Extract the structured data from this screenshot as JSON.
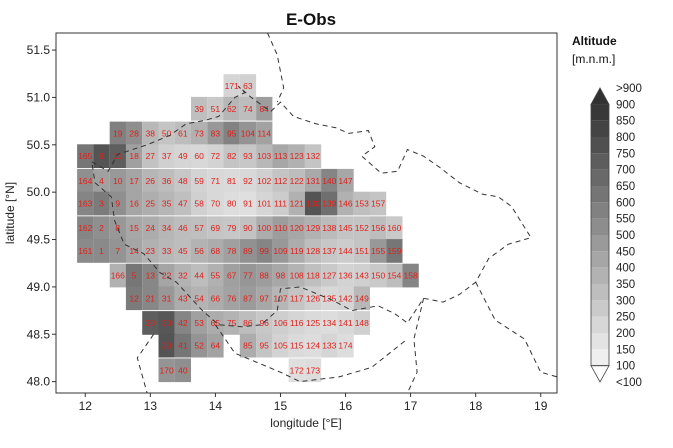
{
  "chart_data": {
    "type": "heatmap",
    "title": "E-Obs",
    "xlabel": "longitude [°E]",
    "ylabel": "latitude [°N]",
    "xlim": [
      11.55,
      19.25
    ],
    "ylim": [
      47.88,
      51.68
    ],
    "x_ticks": [
      12,
      13,
      14,
      15,
      16,
      17,
      18,
      19
    ],
    "y_ticks": [
      48.0,
      48.5,
      49.0,
      49.5,
      50.0,
      50.5,
      51.0,
      51.5
    ],
    "y_tick_labels": [
      "48.0",
      "48.5",
      "49.0",
      "49.5",
      "50.0",
      "50.5",
      "51.0",
      "51.5"
    ],
    "grid": false,
    "legend": {
      "position": "right",
      "title": "Altitude",
      "unit": "[m.n.m.]",
      "labels": [
        ">900",
        "900",
        "850",
        "800",
        "750",
        "700",
        "650",
        "600",
        "550",
        "500",
        "450",
        "400",
        "350",
        "300",
        "250",
        "200",
        "150",
        "100",
        "<100"
      ]
    },
    "cells": [
      {
        "id": "171",
        "lon": 14.25,
        "lat": 51.12,
        "alt": 230
      },
      {
        "id": "63",
        "lon": 14.5,
        "lat": 51.12,
        "alt": 250
      },
      {
        "id": "39",
        "lon": 13.75,
        "lat": 50.88,
        "alt": 320
      },
      {
        "id": "51",
        "lon": 14.0,
        "lat": 50.88,
        "alt": 280
      },
      {
        "id": "62",
        "lon": 14.25,
        "lat": 50.88,
        "alt": 360
      },
      {
        "id": "74",
        "lon": 14.5,
        "lat": 50.88,
        "alt": 330
      },
      {
        "id": "84",
        "lon": 14.75,
        "lat": 50.88,
        "alt": 460
      },
      {
        "id": "19",
        "lon": 12.5,
        "lat": 50.62,
        "alt": 580
      },
      {
        "id": "28",
        "lon": 12.75,
        "lat": 50.62,
        "alt": 520
      },
      {
        "id": "38",
        "lon": 13.0,
        "lat": 50.62,
        "alt": 350
      },
      {
        "id": "50",
        "lon": 13.25,
        "lat": 50.62,
        "alt": 300
      },
      {
        "id": "61",
        "lon": 13.5,
        "lat": 50.62,
        "alt": 330
      },
      {
        "id": "73",
        "lon": 13.75,
        "lat": 50.62,
        "alt": 380
      },
      {
        "id": "83",
        "lon": 14.0,
        "lat": 50.62,
        "alt": 480
      },
      {
        "id": "95",
        "lon": 14.25,
        "lat": 50.62,
        "alt": 570
      },
      {
        "id": "104",
        "lon": 14.5,
        "lat": 50.62,
        "alt": 500
      },
      {
        "id": "114",
        "lon": 14.75,
        "lat": 50.62,
        "alt": 440
      },
      {
        "id": "165",
        "lon": 12.0,
        "lat": 50.38,
        "alt": 620
      },
      {
        "id": "6",
        "lon": 12.25,
        "lat": 50.38,
        "alt": 760
      },
      {
        "id": "11",
        "lon": 12.5,
        "lat": 50.38,
        "alt": 720
      },
      {
        "id": "18",
        "lon": 12.75,
        "lat": 50.38,
        "alt": 450
      },
      {
        "id": "27",
        "lon": 13.0,
        "lat": 50.38,
        "alt": 310
      },
      {
        "id": "37",
        "lon": 13.25,
        "lat": 50.38,
        "alt": 250
      },
      {
        "id": "49",
        "lon": 13.5,
        "lat": 50.38,
        "alt": 230
      },
      {
        "id": "60",
        "lon": 13.75,
        "lat": 50.38,
        "alt": 220
      },
      {
        "id": "72",
        "lon": 14.0,
        "lat": 50.38,
        "alt": 240
      },
      {
        "id": "82",
        "lon": 14.25,
        "lat": 50.38,
        "alt": 300
      },
      {
        "id": "93",
        "lon": 14.5,
        "lat": 50.38,
        "alt": 290
      },
      {
        "id": "103",
        "lon": 14.75,
        "lat": 50.38,
        "alt": 350
      },
      {
        "id": "113",
        "lon": 15.0,
        "lat": 50.38,
        "alt": 420
      },
      {
        "id": "123",
        "lon": 15.25,
        "lat": 50.38,
        "alt": 380
      },
      {
        "id": "132",
        "lon": 15.5,
        "lat": 50.38,
        "alt": 300
      },
      {
        "id": "164",
        "lon": 12.0,
        "lat": 50.12,
        "alt": 520
      },
      {
        "id": "4",
        "lon": 12.25,
        "lat": 50.12,
        "alt": 450
      },
      {
        "id": "10",
        "lon": 12.5,
        "lat": 50.12,
        "alt": 480
      },
      {
        "id": "17",
        "lon": 12.75,
        "lat": 50.12,
        "alt": 430
      },
      {
        "id": "26",
        "lon": 13.0,
        "lat": 50.12,
        "alt": 360
      },
      {
        "id": "36",
        "lon": 13.25,
        "lat": 50.12,
        "alt": 330
      },
      {
        "id": "48",
        "lon": 13.5,
        "lat": 50.12,
        "alt": 290
      },
      {
        "id": "59",
        "lon": 13.75,
        "lat": 50.12,
        "alt": 240
      },
      {
        "id": "71",
        "lon": 14.0,
        "lat": 50.12,
        "alt": 220
      },
      {
        "id": "81",
        "lon": 14.25,
        "lat": 50.12,
        "alt": 210
      },
      {
        "id": "92",
        "lon": 14.5,
        "lat": 50.12,
        "alt": 220
      },
      {
        "id": "102",
        "lon": 14.75,
        "lat": 50.12,
        "alt": 250
      },
      {
        "id": "112",
        "lon": 15.0,
        "lat": 50.12,
        "alt": 300
      },
      {
        "id": "122",
        "lon": 15.25,
        "lat": 50.12,
        "alt": 330
      },
      {
        "id": "131",
        "lon": 15.5,
        "lat": 50.12,
        "alt": 410
      },
      {
        "id": "140",
        "lon": 15.75,
        "lat": 50.12,
        "alt": 560
      },
      {
        "id": "147",
        "lon": 16.0,
        "lat": 50.12,
        "alt": 420
      },
      {
        "id": "163",
        "lon": 12.0,
        "lat": 49.88,
        "alt": 560
      },
      {
        "id": "3",
        "lon": 12.25,
        "lat": 49.88,
        "alt": 600
      },
      {
        "id": "9",
        "lon": 12.5,
        "lat": 49.88,
        "alt": 520
      },
      {
        "id": "16",
        "lon": 12.75,
        "lat": 49.88,
        "alt": 430
      },
      {
        "id": "25",
        "lon": 13.0,
        "lat": 49.88,
        "alt": 390
      },
      {
        "id": "35",
        "lon": 13.25,
        "lat": 49.88,
        "alt": 360
      },
      {
        "id": "47",
        "lon": 13.5,
        "lat": 49.88,
        "alt": 320
      },
      {
        "id": "58",
        "lon": 13.75,
        "lat": 49.88,
        "alt": 250
      },
      {
        "id": "70",
        "lon": 14.0,
        "lat": 49.88,
        "alt": 220
      },
      {
        "id": "80",
        "lon": 14.25,
        "lat": 49.88,
        "alt": 200
      },
      {
        "id": "91",
        "lon": 14.5,
        "lat": 49.88,
        "alt": 190
      },
      {
        "id": "101",
        "lon": 14.75,
        "lat": 49.88,
        "alt": 230
      },
      {
        "id": "111",
        "lon": 15.0,
        "lat": 49.88,
        "alt": 270
      },
      {
        "id": "121",
        "lon": 15.25,
        "lat": 49.88,
        "alt": 380
      },
      {
        "id": "130",
        "lon": 15.5,
        "lat": 49.88,
        "alt": 760
      },
      {
        "id": "139",
        "lon": 15.75,
        "lat": 49.88,
        "alt": 650
      },
      {
        "id": "146",
        "lon": 16.0,
        "lat": 49.88,
        "alt": 380
      },
      {
        "id": "153",
        "lon": 16.25,
        "lat": 49.88,
        "alt": 320
      },
      {
        "id": "157",
        "lon": 16.5,
        "lat": 49.88,
        "alt": 300
      },
      {
        "id": "162",
        "lon": 12.0,
        "lat": 49.62,
        "alt": 560
      },
      {
        "id": "2",
        "lon": 12.25,
        "lat": 49.62,
        "alt": 520
      },
      {
        "id": "8",
        "lon": 12.5,
        "lat": 49.62,
        "alt": 480
      },
      {
        "id": "15",
        "lon": 12.75,
        "lat": 49.62,
        "alt": 420
      },
      {
        "id": "24",
        "lon": 13.0,
        "lat": 49.62,
        "alt": 400
      },
      {
        "id": "34",
        "lon": 13.25,
        "lat": 49.62,
        "alt": 360
      },
      {
        "id": "46",
        "lon": 13.5,
        "lat": 49.62,
        "alt": 330
      },
      {
        "id": "57",
        "lon": 13.75,
        "lat": 49.62,
        "alt": 320
      },
      {
        "id": "69",
        "lon": 14.0,
        "lat": 49.62,
        "alt": 300
      },
      {
        "id": "79",
        "lon": 14.25,
        "lat": 49.62,
        "alt": 290
      },
      {
        "id": "90",
        "lon": 14.5,
        "lat": 49.62,
        "alt": 310
      },
      {
        "id": "100",
        "lon": 14.75,
        "lat": 49.62,
        "alt": 400
      },
      {
        "id": "110",
        "lon": 15.0,
        "lat": 49.62,
        "alt": 460
      },
      {
        "id": "120",
        "lon": 15.25,
        "lat": 49.62,
        "alt": 420
      },
      {
        "id": "129",
        "lon": 15.5,
        "lat": 49.62,
        "alt": 380
      },
      {
        "id": "138",
        "lon": 15.75,
        "lat": 49.62,
        "alt": 340
      },
      {
        "id": "145",
        "lon": 16.0,
        "lat": 49.62,
        "alt": 300
      },
      {
        "id": "152",
        "lon": 16.25,
        "lat": 49.62,
        "alt": 300
      },
      {
        "id": "156",
        "lon": 16.5,
        "lat": 49.62,
        "alt": 330
      },
      {
        "id": "160",
        "lon": 16.75,
        "lat": 49.62,
        "alt": 280
      },
      {
        "id": "161",
        "lon": 12.0,
        "lat": 49.38,
        "alt": 540
      },
      {
        "id": "1",
        "lon": 12.25,
        "lat": 49.38,
        "alt": 540
      },
      {
        "id": "7",
        "lon": 12.5,
        "lat": 49.38,
        "alt": 500
      },
      {
        "id": "14",
        "lon": 12.75,
        "lat": 49.38,
        "alt": 430
      },
      {
        "id": "23",
        "lon": 13.0,
        "lat": 49.38,
        "alt": 380
      },
      {
        "id": "33",
        "lon": 13.25,
        "lat": 49.38,
        "alt": 350
      },
      {
        "id": "45",
        "lon": 13.5,
        "lat": 49.38,
        "alt": 330
      },
      {
        "id": "56",
        "lon": 13.75,
        "lat": 49.38,
        "alt": 370
      },
      {
        "id": "68",
        "lon": 14.0,
        "lat": 49.38,
        "alt": 400
      },
      {
        "id": "78",
        "lon": 14.25,
        "lat": 49.38,
        "alt": 450
      },
      {
        "id": "89",
        "lon": 14.5,
        "lat": 49.38,
        "alt": 510
      },
      {
        "id": "99",
        "lon": 14.75,
        "lat": 49.38,
        "alt": 560
      },
      {
        "id": "109",
        "lon": 15.0,
        "lat": 49.38,
        "alt": 480
      },
      {
        "id": "119",
        "lon": 15.25,
        "lat": 49.38,
        "alt": 400
      },
      {
        "id": "128",
        "lon": 15.5,
        "lat": 49.38,
        "alt": 330
      },
      {
        "id": "137",
        "lon": 15.75,
        "lat": 49.38,
        "alt": 290
      },
      {
        "id": "144",
        "lon": 16.0,
        "lat": 49.38,
        "alt": 270
      },
      {
        "id": "151",
        "lon": 16.25,
        "lat": 49.38,
        "alt": 300
      },
      {
        "id": "155",
        "lon": 16.5,
        "lat": 49.38,
        "alt": 480
      },
      {
        "id": "159",
        "lon": 16.75,
        "lat": 49.38,
        "alt": 620
      },
      {
        "id": "166",
        "lon": 12.5,
        "lat": 49.12,
        "alt": 380
      },
      {
        "id": "5",
        "lon": 12.75,
        "lat": 49.12,
        "alt": 620
      },
      {
        "id": "13",
        "lon": 13.0,
        "lat": 49.12,
        "alt": 550
      },
      {
        "id": "22",
        "lon": 13.25,
        "lat": 49.12,
        "alt": 430
      },
      {
        "id": "32",
        "lon": 13.5,
        "lat": 49.12,
        "alt": 370
      },
      {
        "id": "44",
        "lon": 13.75,
        "lat": 49.12,
        "alt": 330
      },
      {
        "id": "55",
        "lon": 14.0,
        "lat": 49.12,
        "alt": 380
      },
      {
        "id": "67",
        "lon": 14.25,
        "lat": 49.12,
        "alt": 450
      },
      {
        "id": "77",
        "lon": 14.5,
        "lat": 49.12,
        "alt": 490
      },
      {
        "id": "88",
        "lon": 14.75,
        "lat": 49.12,
        "alt": 460
      },
      {
        "id": "98",
        "lon": 15.0,
        "lat": 49.12,
        "alt": 420
      },
      {
        "id": "108",
        "lon": 15.25,
        "lat": 49.12,
        "alt": 370
      },
      {
        "id": "118",
        "lon": 15.5,
        "lat": 49.12,
        "alt": 320
      },
      {
        "id": "127",
        "lon": 15.75,
        "lat": 49.12,
        "alt": 280
      },
      {
        "id": "136",
        "lon": 16.0,
        "lat": 49.12,
        "alt": 240
      },
      {
        "id": "143",
        "lon": 16.25,
        "lat": 49.12,
        "alt": 250
      },
      {
        "id": "150",
        "lon": 16.5,
        "lat": 49.12,
        "alt": 280
      },
      {
        "id": "154",
        "lon": 16.75,
        "lat": 49.12,
        "alt": 330
      },
      {
        "id": "158",
        "lon": 17.0,
        "lat": 49.12,
        "alt": 560
      },
      {
        "id": "12",
        "lon": 12.75,
        "lat": 48.88,
        "alt": 600
      },
      {
        "id": "21",
        "lon": 13.0,
        "lat": 48.88,
        "alt": 550
      },
      {
        "id": "31",
        "lon": 13.25,
        "lat": 48.88,
        "alt": 480
      },
      {
        "id": "43",
        "lon": 13.5,
        "lat": 48.88,
        "alt": 400
      },
      {
        "id": "54",
        "lon": 13.75,
        "lat": 48.88,
        "alt": 370
      },
      {
        "id": "66",
        "lon": 14.0,
        "lat": 48.88,
        "alt": 400
      },
      {
        "id": "76",
        "lon": 14.25,
        "lat": 48.88,
        "alt": 440
      },
      {
        "id": "87",
        "lon": 14.5,
        "lat": 48.88,
        "alt": 470
      },
      {
        "id": "97",
        "lon": 14.75,
        "lat": 48.88,
        "alt": 420
      },
      {
        "id": "107",
        "lon": 15.0,
        "lat": 48.88,
        "alt": 360
      },
      {
        "id": "117",
        "lon": 15.25,
        "lat": 48.88,
        "alt": 300
      },
      {
        "id": "126",
        "lon": 15.5,
        "lat": 48.88,
        "alt": 250
      },
      {
        "id": "135",
        "lon": 15.75,
        "lat": 48.88,
        "alt": 220
      },
      {
        "id": "142",
        "lon": 16.0,
        "lat": 48.88,
        "alt": 230
      },
      {
        "id": "149",
        "lon": 16.25,
        "lat": 48.88,
        "alt": 350
      },
      {
        "id": "20",
        "lon": 13.0,
        "lat": 48.62,
        "alt": 720
      },
      {
        "id": "30",
        "lon": 13.25,
        "lat": 48.62,
        "alt": 750
      },
      {
        "id": "42",
        "lon": 13.5,
        "lat": 48.62,
        "alt": 560
      },
      {
        "id": "53",
        "lon": 13.75,
        "lat": 48.62,
        "alt": 450
      },
      {
        "id": "65",
        "lon": 14.0,
        "lat": 48.62,
        "alt": 400
      },
      {
        "id": "75",
        "lon": 14.25,
        "lat": 48.62,
        "alt": 370
      },
      {
        "id": "86",
        "lon": 14.5,
        "lat": 48.62,
        "alt": 330
      },
      {
        "id": "96",
        "lon": 14.75,
        "lat": 48.62,
        "alt": 290
      },
      {
        "id": "106",
        "lon": 15.0,
        "lat": 48.62,
        "alt": 260
      },
      {
        "id": "116",
        "lon": 15.25,
        "lat": 48.62,
        "alt": 230
      },
      {
        "id": "125",
        "lon": 15.5,
        "lat": 48.62,
        "alt": 210
      },
      {
        "id": "134",
        "lon": 15.75,
        "lat": 48.62,
        "alt": 200
      },
      {
        "id": "141",
        "lon": 16.0,
        "lat": 48.62,
        "alt": 220
      },
      {
        "id": "148",
        "lon": 16.25,
        "lat": 48.62,
        "alt": 250
      },
      {
        "id": "29",
        "lon": 13.25,
        "lat": 48.38,
        "alt": 760
      },
      {
        "id": "41",
        "lon": 13.5,
        "lat": 48.38,
        "alt": 620
      },
      {
        "id": "52",
        "lon": 13.75,
        "lat": 48.38,
        "alt": 500
      },
      {
        "id": "64",
        "lon": 14.0,
        "lat": 48.38,
        "alt": 440
      },
      {
        "id": "85",
        "lon": 14.5,
        "lat": 48.38,
        "alt": 400
      },
      {
        "id": "95b",
        "lon": 14.75,
        "lat": 48.38,
        "alt": 300
      },
      {
        "id": "105",
        "lon": 15.0,
        "lat": 48.38,
        "alt": 240
      },
      {
        "id": "115",
        "lon": 15.25,
        "lat": 48.38,
        "alt": 210
      },
      {
        "id": "124",
        "lon": 15.5,
        "lat": 48.38,
        "alt": 200
      },
      {
        "id": "133",
        "lon": 15.75,
        "lat": 48.38,
        "alt": 230
      },
      {
        "id": "174",
        "lon": 16.0,
        "lat": 48.38,
        "alt": 200
      },
      {
        "id": "40",
        "lon": 13.5,
        "lat": 48.12,
        "alt": 520
      },
      {
        "id": "172",
        "lon": 15.25,
        "lat": 48.12,
        "alt": 190
      },
      {
        "id": "173",
        "lon": 15.5,
        "lat": 48.12,
        "alt": 200
      },
      {
        "id": "170",
        "lon": 13.25,
        "lat": 48.12,
        "alt": 500
      }
    ]
  }
}
